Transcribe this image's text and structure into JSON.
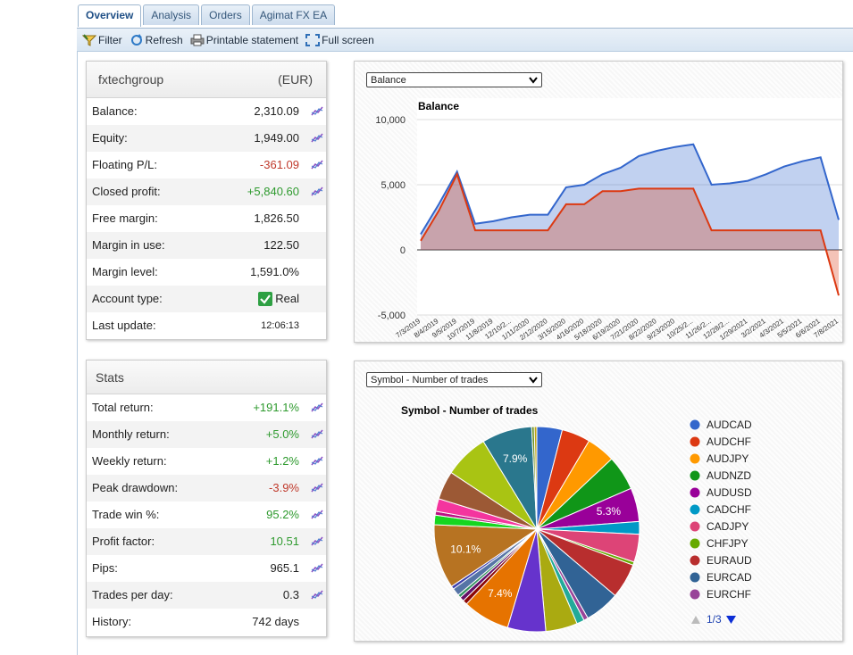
{
  "tabs": [
    "Overview",
    "Analysis",
    "Orders",
    "Agimat FX EA"
  ],
  "toolbar": [
    "Filter",
    "Refresh",
    "Printable statement",
    "Full screen"
  ],
  "account": {
    "name": "fxtechgroup",
    "currency": "(EUR)",
    "rows": [
      {
        "label": "Balance:",
        "value": "2,310.09",
        "chart_icon": true
      },
      {
        "label": "Equity:",
        "value": "1,949.00",
        "chart_icon": true
      },
      {
        "label": "Floating P/L:",
        "value": "-361.09",
        "color": "#c0392b",
        "chart_icon": true
      },
      {
        "label": "Closed profit:",
        "value": "+5,840.60",
        "color": "#2e9a2e",
        "chart_icon": true
      },
      {
        "label": "Free margin:",
        "value": "1,826.50"
      },
      {
        "label": "Margin in use:",
        "value": "122.50"
      },
      {
        "label": "Margin level:",
        "value": "1,591.0%"
      },
      {
        "label": "Account type:",
        "value": "Real",
        "check_icon": true
      },
      {
        "label": "Last update:",
        "value": "12:06:13",
        "small": true
      }
    ]
  },
  "stats": {
    "title": "Stats",
    "rows": [
      {
        "label": "Total return:",
        "value": "+191.1%",
        "color": "#2e9a2e",
        "chart_icon": true
      },
      {
        "label": "Monthly return:",
        "value": "+5.0%",
        "color": "#2e9a2e",
        "chart_icon": true
      },
      {
        "label": "Weekly return:",
        "value": "+1.2%",
        "color": "#2e9a2e",
        "chart_icon": true
      },
      {
        "label": "Peak drawdown:",
        "value": "-3.9%",
        "color": "#c0392b",
        "chart_icon": true
      },
      {
        "label": "Trade win %:",
        "value": "95.2%",
        "color": "#2e9a2e",
        "chart_icon": true
      },
      {
        "label": "Profit factor:",
        "value": "10.51",
        "color": "#2e9a2e",
        "chart_icon": true
      },
      {
        "label": "Pips:",
        "value": "965.1",
        "chart_icon": true
      },
      {
        "label": "Trades per day:",
        "value": "0.3",
        "chart_icon": true
      },
      {
        "label": "History:",
        "value": "742 days"
      }
    ]
  },
  "chart_data": [
    {
      "type": "line",
      "selector": "Balance",
      "title": "Balance",
      "categories": [
        "7/3/2019",
        "8/4/2019",
        "9/5/2019",
        "10/7/2019",
        "11/8/2019",
        "12/10/2...",
        "1/11/2020",
        "2/12/2020",
        "3/15/2020",
        "4/16/2020",
        "5/18/2020",
        "6/19/2020",
        "7/21/2020",
        "8/22/2020",
        "9/23/2020",
        "10/25/2...",
        "11/26/2...",
        "12/28/2...",
        "1/29/2021",
        "3/2/2021",
        "4/3/2021",
        "5/5/2021",
        "6/6/2021",
        "7/8/2021"
      ],
      "series": [
        {
          "color": "#3366cc",
          "values": [
            1200,
            3500,
            6000,
            2000,
            2200,
            2500,
            2700,
            2700,
            4800,
            5000,
            5800,
            6300,
            7200,
            7600,
            7900,
            8100,
            5000,
            5100,
            5300,
            5800,
            6400,
            6800,
            7100,
            2300
          ]
        },
        {
          "color": "#dc3912",
          "values": [
            700,
            3000,
            5800,
            1500,
            1500,
            1500,
            1500,
            1500,
            3500,
            3500,
            4500,
            4500,
            4700,
            4700,
            4700,
            4700,
            1500,
            1500,
            1500,
            1500,
            1500,
            1500,
            1500,
            -3500
          ]
        }
      ],
      "ylim": [
        -5000,
        10000
      ],
      "yticks": [
        {
          "value": 10000,
          "label": "10,000"
        },
        {
          "value": 5000,
          "label": "5,000"
        },
        0,
        {
          "value": -5000,
          "label": "-5,000"
        }
      ],
      "grid": true
    },
    {
      "type": "pie",
      "selector": "Symbol - Number of trades",
      "title": "Symbol - Number of trades",
      "categories": [
        "AUDCAD",
        "AUDCHF",
        "AUDJPY",
        "AUDNZD",
        "AUDUSD",
        "CADCHF",
        "CADJPY",
        "CHFJPY",
        "EURAUD",
        "EURCAD",
        "EURCHF",
        null,
        null,
        null,
        null,
        null,
        null,
        null,
        null,
        null,
        null,
        null,
        null,
        null,
        null,
        null,
        null,
        null,
        null
      ],
      "colors": [
        "#3366cc",
        "#dc3912",
        "#ff9900",
        "#109618",
        "#990099",
        "#0099c6",
        "#dd4477",
        "#66aa00",
        "#b82e2e",
        "#316395",
        "#994499",
        "#22aa99",
        "#aaaa11",
        "#6633cc",
        "#e67300",
        "#8b0707",
        "#651067",
        "#329262",
        "#5574a6",
        "#3b3eac",
        "#b77322",
        "#16d620",
        "#b91383",
        "#f4359e",
        "#9c5935",
        "#a9c413",
        "#2a778d",
        "#668d1c",
        "#bea413"
      ],
      "values": [
        4,
        4.5,
        4.5,
        5.5,
        5.3,
        2,
        4.4,
        0.5,
        5.5,
        5.5,
        0.7,
        1.2,
        5,
        6,
        7.4,
        0.7,
        0.7,
        0.5,
        1.2,
        0.5,
        10.1,
        1.5,
        0.6,
        2,
        4.5,
        7,
        7.9,
        0.4,
        0.4
      ],
      "value_labels": [
        null,
        null,
        null,
        null,
        "5.3%",
        null,
        null,
        null,
        null,
        null,
        null,
        null,
        null,
        null,
        "7.4%",
        null,
        null,
        null,
        null,
        null,
        "10.1%",
        null,
        null,
        null,
        null,
        null,
        "7.9%",
        null,
        null
      ],
      "pager": "1/3"
    }
  ]
}
